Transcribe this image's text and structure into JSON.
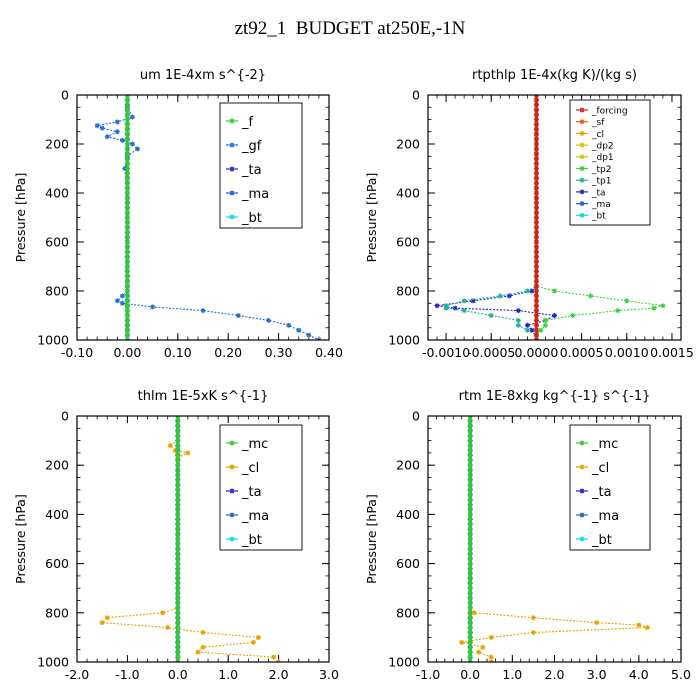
{
  "page_title": "zt92_1  BUDGET at250E,-1N",
  "colors": {
    "frame": "#000000",
    "f": "#2ecc2e",
    "gf": "#1f6fd0",
    "ta": "#2222cc",
    "ma": "#1f5fbf",
    "bt": "#00d8f0",
    "forcing": "#d02020",
    "sf": "#e06010",
    "cl": "#e8a000",
    "dp2": "#e0c000",
    "dp1": "#c0d000",
    "tp2": "#3cd03c",
    "tp1": "#20b0a0",
    "mc": "#2ecc2e"
  },
  "chart_data": [
    {
      "type": "line",
      "title": "um   1E-4xm s^{-2}",
      "ylabel": "Pressure [hPa]",
      "xlim": [
        -0.1,
        0.4
      ],
      "ylim": [
        0,
        1000
      ],
      "y_inverted": true,
      "xticks": [
        "-0.10",
        "0.00",
        "0.10",
        "0.20",
        "0.30",
        "0.40"
      ],
      "yticks": [
        "0",
        "200",
        "400",
        "600",
        "800",
        "1000"
      ],
      "legend_position": "top-right",
      "series": [
        {
          "name": "_f",
          "pressure": [
            0,
            100,
            200,
            300,
            400,
            500,
            600,
            700,
            800,
            850,
            900,
            950,
            1000
          ],
          "values": [
            0,
            0,
            0,
            0,
            0,
            0,
            0,
            0,
            0,
            0,
            0,
            0,
            0
          ]
        },
        {
          "name": "_gf",
          "pressure": [
            0,
            50,
            90,
            110,
            125,
            135,
            150,
            170,
            185,
            200,
            220,
            250,
            300,
            400,
            500,
            600,
            700,
            780,
            800,
            820,
            840,
            850,
            865,
            880,
            900,
            920,
            940,
            960,
            980,
            1000
          ],
          "values": [
            0,
            0,
            0.01,
            -0.02,
            -0.06,
            -0.05,
            -0.02,
            -0.04,
            -0.01,
            0.01,
            0.02,
            0,
            -0.005,
            0,
            0,
            0,
            0,
            0,
            0,
            -0.01,
            -0.02,
            -0.01,
            0.05,
            0.15,
            0.22,
            0.28,
            0.32,
            0.34,
            0.36,
            0.38
          ]
        },
        {
          "name": "_ta",
          "pressure": [
            0,
            100,
            200,
            300,
            400,
            500,
            600,
            700,
            800,
            900,
            1000
          ],
          "values": [
            0,
            0,
            0,
            0,
            0,
            0,
            0,
            0,
            0,
            0,
            0
          ]
        },
        {
          "name": "_ma",
          "pressure": [
            0,
            100,
            200,
            300,
            400,
            500,
            600,
            700,
            800,
            900,
            1000
          ],
          "values": [
            0,
            0,
            0,
            0,
            0,
            0,
            0,
            0,
            0,
            0,
            0
          ]
        },
        {
          "name": "_bt",
          "pressure": [
            0,
            100,
            200,
            300,
            400,
            500,
            600,
            700,
            800,
            900,
            1000
          ],
          "values": [
            0,
            0,
            0,
            0,
            0,
            0,
            0,
            0,
            0,
            0,
            0
          ]
        }
      ]
    },
    {
      "type": "line",
      "title": "rtpthlp   1E-4x(kg K)/(kg s)",
      "ylabel": "Pressure [hPa]",
      "xlim": [
        -0.0012,
        0.0016
      ],
      "ylim": [
        0,
        1000
      ],
      "y_inverted": true,
      "xticks": [
        "-0.0010",
        "-0.0005",
        "0.0000",
        "0.0005",
        "0.0010",
        "0.0015"
      ],
      "xtick_values": [
        -0.001,
        -0.0005,
        0.0,
        0.0005,
        0.001,
        0.0015
      ],
      "yticks": [
        "0",
        "200",
        "400",
        "600",
        "800",
        "1000"
      ],
      "legend_position": "top-right",
      "series": [
        {
          "name": "_forcing",
          "pressure": [
            0,
            200,
            400,
            600,
            800,
            1000
          ],
          "values": [
            0,
            0,
            0,
            0,
            0,
            0
          ]
        },
        {
          "name": "_sf",
          "pressure": [
            0,
            200,
            400,
            600,
            800,
            1000
          ],
          "values": [
            0,
            0,
            0,
            0,
            0,
            0
          ]
        },
        {
          "name": "_cl",
          "pressure": [
            0,
            200,
            400,
            600,
            800,
            1000
          ],
          "values": [
            0,
            0,
            0,
            0,
            0,
            0
          ]
        },
        {
          "name": "_dp2",
          "pressure": [
            0,
            200,
            400,
            600,
            800,
            1000
          ],
          "values": [
            0,
            0,
            0,
            0,
            0,
            0
          ]
        },
        {
          "name": "_dp1",
          "pressure": [
            0,
            200,
            400,
            600,
            800,
            1000
          ],
          "values": [
            0,
            0,
            0,
            0,
            0,
            0
          ]
        },
        {
          "name": "_tp2",
          "pressure": [
            0,
            780,
            800,
            820,
            840,
            860,
            870,
            880,
            900,
            920,
            940,
            960,
            980,
            1000
          ],
          "values": [
            0,
            0,
            0.0002,
            0.0006,
            0.001,
            0.0014,
            0.0013,
            0.0009,
            0.0004,
            0.0001,
            0.0001,
            5e-05,
            0,
            0
          ]
        },
        {
          "name": "_tp1",
          "pressure": [
            0,
            780,
            800,
            820,
            840,
            860,
            870,
            880,
            900,
            920,
            940,
            960,
            980,
            1000
          ],
          "values": [
            0,
            0,
            -0.0001,
            -0.0004,
            -0.0008,
            -0.001,
            -0.001,
            -0.0008,
            -0.0005,
            -0.0002,
            -0.0002,
            -0.0001,
            0,
            0
          ]
        },
        {
          "name": "_ta",
          "pressure": [
            0,
            780,
            800,
            820,
            840,
            860,
            870,
            880,
            900,
            920,
            940,
            960,
            980,
            1000
          ],
          "values": [
            0,
            0,
            -5e-05,
            -0.0003,
            -0.0007,
            -0.0011,
            -0.0009,
            -0.0002,
            0.0002,
            0.0001,
            -0.0001,
            -5e-05,
            0,
            0
          ]
        },
        {
          "name": "_ma",
          "pressure": [
            0,
            200,
            400,
            600,
            800,
            1000
          ],
          "values": [
            0,
            0,
            0,
            0,
            0,
            0
          ]
        },
        {
          "name": "_bt",
          "pressure": [
            0,
            200,
            400,
            600,
            800,
            1000
          ],
          "values": [
            0,
            0,
            0,
            0,
            0,
            0
          ]
        }
      ]
    },
    {
      "type": "line",
      "title": "thlm   1E-5xK s^{-1}",
      "ylabel": "Pressure [hPa]",
      "xlim": [
        -2.0,
        3.0
      ],
      "ylim": [
        0,
        1000
      ],
      "y_inverted": true,
      "xticks": [
        "-2.0",
        "-1.0",
        "0.0",
        "1.0",
        "2.0",
        "3.0"
      ],
      "yticks": [
        "0",
        "200",
        "400",
        "600",
        "800",
        "1000"
      ],
      "legend_position": "top-right",
      "series": [
        {
          "name": "_mc",
          "pressure": [
            0,
            100,
            200,
            300,
            400,
            500,
            600,
            700,
            800,
            900,
            1000
          ],
          "values": [
            0,
            0,
            0,
            0,
            0,
            0,
            0,
            0,
            0,
            0,
            0
          ]
        },
        {
          "name": "_cl",
          "pressure": [
            0,
            100,
            120,
            140,
            150,
            170,
            200,
            300,
            400,
            500,
            600,
            700,
            780,
            800,
            820,
            840,
            860,
            880,
            900,
            920,
            940,
            960,
            980,
            1000
          ],
          "values": [
            0,
            0,
            -0.15,
            -0.05,
            0.2,
            0,
            0,
            0,
            0,
            0,
            0,
            0,
            0,
            -0.3,
            -1.4,
            -1.5,
            -0.2,
            0.5,
            1.6,
            1.5,
            0.5,
            0.4,
            1.9,
            2.0
          ]
        },
        {
          "name": "_ta",
          "pressure": [
            0,
            200,
            400,
            600,
            800,
            1000
          ],
          "values": [
            0,
            0,
            0,
            0,
            0,
            0
          ]
        },
        {
          "name": "_ma",
          "pressure": [
            0,
            200,
            400,
            600,
            800,
            1000
          ],
          "values": [
            0,
            0,
            0,
            0,
            0,
            0
          ]
        },
        {
          "name": "_bt",
          "pressure": [
            0,
            200,
            400,
            600,
            800,
            1000
          ],
          "values": [
            0,
            0,
            0,
            0,
            0,
            0
          ]
        }
      ]
    },
    {
      "type": "line",
      "title": "rtm   1E-8xkg kg^{-1} s^{-1}",
      "ylabel": "Pressure [hPa]",
      "xlim": [
        -1.0,
        5.0
      ],
      "ylim": [
        0,
        1000
      ],
      "y_inverted": true,
      "xticks": [
        "-1.0",
        "0.0",
        "1.0",
        "2.0",
        "3.0",
        "4.0",
        "5.0"
      ],
      "yticks": [
        "0",
        "200",
        "400",
        "600",
        "800",
        "1000"
      ],
      "legend_position": "top-right",
      "series": [
        {
          "name": "_mc",
          "pressure": [
            0,
            100,
            200,
            300,
            400,
            500,
            600,
            700,
            800,
            900,
            1000
          ],
          "values": [
            0,
            0,
            0,
            0,
            0,
            0,
            0,
            0,
            0,
            0,
            0
          ]
        },
        {
          "name": "_cl",
          "pressure": [
            0,
            200,
            400,
            600,
            700,
            780,
            800,
            820,
            840,
            850,
            860,
            880,
            900,
            920,
            940,
            960,
            980,
            1000
          ],
          "values": [
            0,
            0,
            0,
            0,
            0,
            0,
            0.1,
            1.5,
            3.0,
            4.0,
            4.2,
            1.5,
            0.5,
            -0.2,
            0.3,
            0.2,
            0.5,
            0.5
          ]
        },
        {
          "name": "_ta",
          "pressure": [
            0,
            200,
            400,
            600,
            800,
            1000
          ],
          "values": [
            0,
            0,
            0,
            0,
            0,
            0
          ]
        },
        {
          "name": "_ma",
          "pressure": [
            0,
            200,
            400,
            600,
            800,
            1000
          ],
          "values": [
            0,
            0,
            0,
            0,
            0,
            0
          ]
        },
        {
          "name": "_bt",
          "pressure": [
            0,
            200,
            400,
            600,
            800,
            1000
          ],
          "values": [
            0,
            0,
            0,
            0,
            0,
            0
          ]
        }
      ]
    }
  ]
}
